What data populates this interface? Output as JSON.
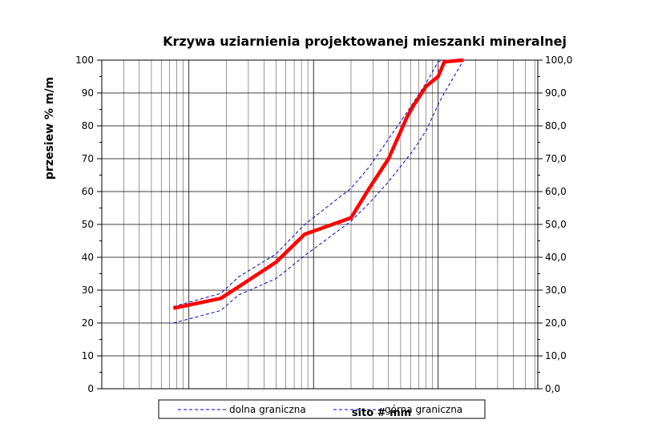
{
  "chart_data": {
    "type": "line",
    "title": "Krzywa uziarnienia projektowanej mieszanki mineralnej",
    "ylabel": "przesiew % m/m",
    "xlabel": "sito # mm",
    "ylim": [
      0,
      100
    ],
    "xscale": "log",
    "xlim": [
      0.02,
      63
    ],
    "y_ticks_left": [
      "0",
      "10",
      "20",
      "30",
      "40",
      "50",
      "60",
      "70",
      "80",
      "90",
      "100"
    ],
    "y_ticks_right": [
      "0,0",
      "10,0",
      "20,0",
      "30,0",
      "40,0",
      "50,0",
      "60,0",
      "70,0",
      "80,0",
      "90,0",
      "100,0"
    ],
    "grid": true,
    "legend_position": "bottom",
    "x": [
      0.075,
      0.18,
      0.25,
      0.5,
      0.85,
      2,
      2.8,
      4,
      5.6,
      6.3,
      8,
      10,
      11.2,
      16
    ],
    "series": [
      {
        "name": "",
        "role": "mixture",
        "color": "#ff0000",
        "style": "solid",
        "values": [
          24.5,
          27.5,
          31,
          38.5,
          47,
          52,
          61,
          70,
          82.5,
          86,
          92,
          95,
          99.5,
          100
        ]
      },
      {
        "name": "dolna graniczna",
        "role": "lower",
        "color": "#0000cc",
        "style": "dashed",
        "values": [
          20,
          23.8,
          28.5,
          33.5,
          40.5,
          51,
          56.5,
          63,
          70,
          72.5,
          78.5,
          86.5,
          90,
          100
        ]
      },
      {
        "name": "górna graniczna",
        "role": "upper",
        "color": "#0000cc",
        "style": "dashed",
        "values": [
          25,
          29,
          34,
          41,
          50,
          61,
          67.5,
          76,
          84,
          87,
          93,
          99.5,
          100,
          100
        ]
      }
    ]
  }
}
